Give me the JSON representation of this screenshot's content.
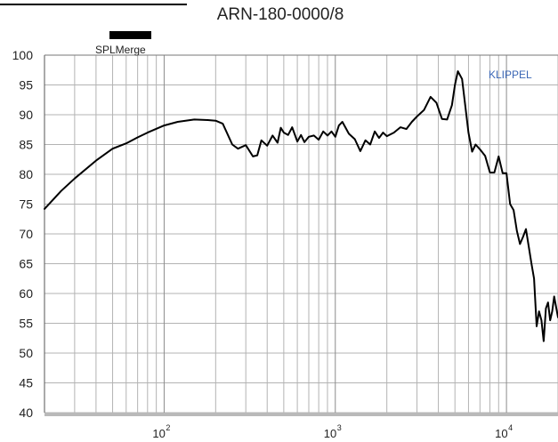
{
  "chart_data": {
    "type": "line",
    "title": "ARN-180-0000/8",
    "xscale": "log",
    "xlim": [
      20,
      20000
    ],
    "ylim": [
      40,
      100
    ],
    "grid": true,
    "legend": "top-left",
    "watermark": "KLIPPEL",
    "y_ticks": [
      "100",
      "95",
      "90",
      "85",
      "80",
      "75",
      "70",
      "65",
      "60",
      "55",
      "50",
      "45",
      "40"
    ],
    "x_ticks": [
      {
        "value": 100,
        "base": "10",
        "exp": "2"
      },
      {
        "value": 1000,
        "base": "10",
        "exp": "3"
      },
      {
        "value": 10000,
        "base": "10",
        "exp": "4"
      }
    ],
    "series": [
      {
        "name": "SPLMerge",
        "color": "#000000",
        "x": [
          20,
          25,
          30,
          40,
          50,
          60,
          70,
          80,
          100,
          120,
          150,
          180,
          200,
          220,
          250,
          270,
          300,
          330,
          350,
          370,
          400,
          430,
          460,
          480,
          500,
          530,
          560,
          600,
          630,
          660,
          700,
          750,
          800,
          850,
          900,
          950,
          1000,
          1050,
          1100,
          1200,
          1300,
          1400,
          1500,
          1600,
          1700,
          1800,
          1900,
          2000,
          2200,
          2400,
          2600,
          2800,
          3000,
          3300,
          3600,
          3900,
          4200,
          4500,
          4800,
          5000,
          5200,
          5500,
          5800,
          6000,
          6300,
          6600,
          7000,
          7500,
          8000,
          8500,
          9000,
          9500,
          10000,
          10500,
          11000,
          11500,
          12000,
          12500,
          13000,
          13500,
          14000,
          14500,
          15000,
          15500,
          16000,
          16500,
          17000,
          17500,
          18000,
          18500,
          19000,
          20000
        ],
        "y": [
          74.2,
          77.2,
          79.3,
          82.3,
          84.3,
          85.2,
          86.2,
          87.0,
          88.2,
          88.8,
          89.2,
          89.1,
          89.0,
          88.5,
          85.0,
          84.3,
          84.9,
          83.0,
          83.2,
          85.7,
          84.8,
          86.5,
          85.3,
          87.8,
          87.0,
          86.6,
          87.9,
          85.5,
          86.6,
          85.4,
          86.3,
          86.5,
          85.8,
          87.2,
          86.5,
          87.2,
          86.3,
          88.2,
          88.8,
          86.8,
          85.9,
          83.9,
          85.7,
          85.0,
          87.2,
          86.1,
          87.0,
          86.4,
          87.0,
          87.9,
          87.6,
          88.8,
          89.7,
          90.8,
          93.0,
          92.0,
          89.3,
          89.2,
          91.6,
          95.0,
          97.3,
          96.0,
          90.5,
          87.0,
          83.8,
          85.0,
          84.2,
          83.1,
          80.3,
          80.3,
          83.0,
          80.2,
          80.2,
          75.0,
          74.0,
          70.5,
          68.3,
          69.5,
          70.8,
          67.8,
          65.0,
          62.5,
          54.5,
          57.0,
          55.5,
          52.0,
          57.5,
          58.5,
          55.5,
          57.0,
          59.5,
          56.0
        ]
      }
    ]
  }
}
